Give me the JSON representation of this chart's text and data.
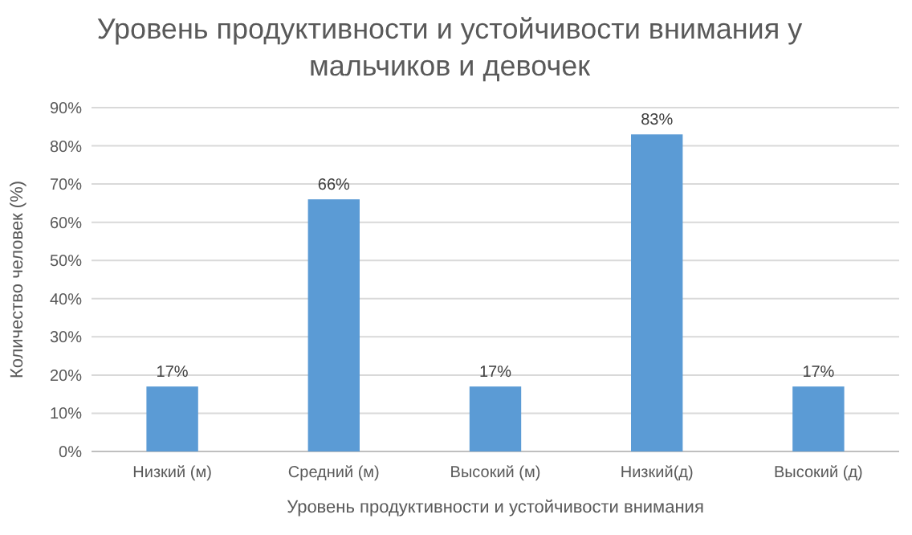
{
  "chart_data": {
    "type": "bar",
    "title": "Уровень продуктивности и устойчивости внимания у мальчиков и девочек",
    "xlabel": "Уровень продуктивности и устойчивости внимания",
    "ylabel": "Количество человек (%)",
    "categories": [
      "Низкий (м)",
      "Средний (м)",
      "Высокий (м)",
      "Низкий(д)",
      "Высокий (д)"
    ],
    "values": [
      17,
      66,
      17,
      83,
      17
    ],
    "color": "#5b9bd5",
    "value_labels": [
      "17%",
      "66%",
      "17%",
      "83%",
      "17%"
    ],
    "ylim": [
      0,
      90
    ],
    "yticks": [
      {
        "value": 0,
        "label": "0%"
      },
      {
        "value": 10,
        "label": "10%"
      },
      {
        "value": 20,
        "label": "20%"
      },
      {
        "value": 30,
        "label": "30%"
      },
      {
        "value": 40,
        "label": "40%"
      },
      {
        "value": 50,
        "label": "50%"
      },
      {
        "value": 60,
        "label": "60%"
      },
      {
        "value": 70,
        "label": "70%"
      },
      {
        "value": 80,
        "label": "80%"
      },
      {
        "value": 90,
        "label": "90%"
      }
    ],
    "grid": "y",
    "legend": false
  }
}
